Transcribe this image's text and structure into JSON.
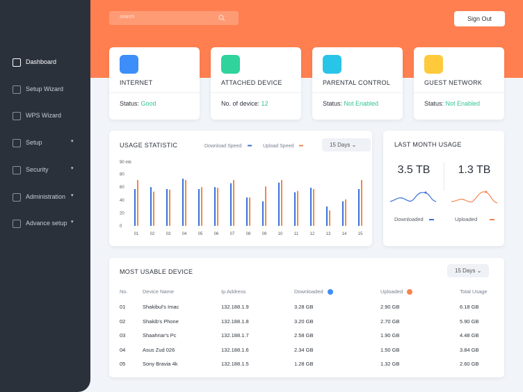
{
  "search_placeholder": "search",
  "sign_out": "Sign Out",
  "sidebar": {
    "items": [
      "Dashboard",
      "Setup Wizard",
      "WPS Wizard",
      "Setup",
      "Security",
      "Administration",
      "Advance setup"
    ]
  },
  "cards": [
    {
      "title": "INTERNET",
      "status_label": "Status:",
      "status_value": "Good"
    },
    {
      "title": "ATTACHED DEVICE",
      "status_label": "No. of device:",
      "status_value": "12"
    },
    {
      "title": "PARENTAL CONTROL",
      "status_label": "Status:",
      "status_value": "Not Enabled"
    },
    {
      "title": "GUEST NETWORK",
      "status_label": "Status:",
      "status_value": "Not Enabled"
    }
  ],
  "usage": {
    "title": "USAGE STATISTIC",
    "period": "15 Days",
    "chart": {
      "type": "bar",
      "y_unit_label": "90 mb",
      "categories": [
        "01",
        "02",
        "03",
        "04",
        "05",
        "06",
        "07",
        "08",
        "09",
        "10",
        "11",
        "12",
        "13",
        "14",
        "15"
      ],
      "series": [
        {
          "name": "Download Speed",
          "color": "#3a6fd8",
          "values": [
            57,
            60,
            57,
            73,
            57,
            60,
            66,
            44,
            38,
            67,
            52,
            59,
            30,
            38,
            57
          ]
        },
        {
          "name": "Upload Speed",
          "color": "#f5834f",
          "values": [
            71,
            53,
            56,
            71,
            60,
            59,
            71,
            44,
            61,
            71,
            54,
            57,
            24,
            41,
            71
          ]
        }
      ],
      "ylim": [
        0,
        100
      ],
      "yticks": [
        0,
        20,
        40,
        60,
        80
      ]
    }
  },
  "last_month": {
    "title": "LAST MONTH USAGE",
    "items": [
      {
        "value": "3.5 TB",
        "label": "Downloaded"
      },
      {
        "value": "1.3 TB",
        "label": "Uploaded"
      }
    ]
  },
  "table": {
    "title": "MOST USABLE DEVICE",
    "period": "15 Days",
    "columns": [
      "No.",
      "Device Name",
      "Ip Address",
      "Downloaded",
      "Uploaded",
      "Total Usage"
    ],
    "rows": [
      [
        "01",
        "Shakibul's Imac",
        "132.188.1.9",
        "3.28 GB",
        "2.90 GB",
        "6.18 GB"
      ],
      [
        "02",
        "Shakib's Phone",
        "132.188.1.8",
        "3.20 GB",
        "2.70 GB",
        "5.90 GB"
      ],
      [
        "03",
        "Shaahriar's Pc",
        "132.188.1.7",
        "2.58 GB",
        "1.90 GB",
        "4.48 GB"
      ],
      [
        "04",
        "Asus Zud 026",
        "132.188.1.6",
        "2.34 GB",
        "1.50 GB",
        "3.84 GB"
      ],
      [
        "05",
        "Sony Bravia 4k",
        "132.188.1.5",
        "1.28 GB",
        "1.32 GB",
        "2.60 GB"
      ]
    ]
  }
}
